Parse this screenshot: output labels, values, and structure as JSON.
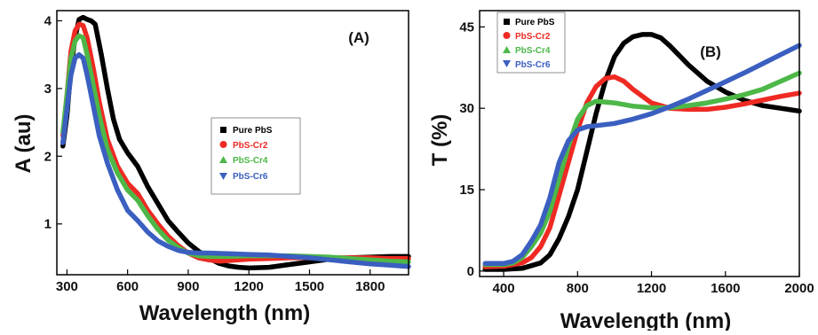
{
  "colors": {
    "pure": "#000000",
    "cr2": "#ee2a23",
    "cr4": "#4db848",
    "cr6": "#3b5fc0"
  },
  "chart_data": [
    {
      "type": "line",
      "panel_label": "(A)",
      "xlabel": "Wavelength (nm)",
      "ylabel": "A (au)",
      "xlim": [
        250,
        1990
      ],
      "ylim": [
        0.25,
        4.15
      ],
      "xticks": [
        300,
        600,
        900,
        1200,
        1500,
        1800
      ],
      "yticks": [
        1,
        2,
        3,
        4
      ],
      "legend_position": "right-center",
      "series": [
        {
          "name": "Pure PbS",
          "color": "#000000",
          "points": [
            [
              280,
              2.15
            ],
            [
              300,
              2.6
            ],
            [
              320,
              3.3
            ],
            [
              340,
              3.75
            ],
            [
              360,
              4.02
            ],
            [
              380,
              4.05
            ],
            [
              400,
              4.02
            ],
            [
              420,
              4.0
            ],
            [
              440,
              3.95
            ],
            [
              470,
              3.5
            ],
            [
              500,
              3.0
            ],
            [
              530,
              2.55
            ],
            [
              560,
              2.25
            ],
            [
              600,
              2.05
            ],
            [
              650,
              1.85
            ],
            [
              700,
              1.55
            ],
            [
              750,
              1.3
            ],
            [
              800,
              1.05
            ],
            [
              850,
              0.88
            ],
            [
              900,
              0.72
            ],
            [
              950,
              0.6
            ],
            [
              1000,
              0.5
            ],
            [
              1050,
              0.42
            ],
            [
              1100,
              0.38
            ],
            [
              1150,
              0.36
            ],
            [
              1200,
              0.35
            ],
            [
              1300,
              0.36
            ],
            [
              1400,
              0.4
            ],
            [
              1500,
              0.44
            ],
            [
              1600,
              0.48
            ],
            [
              1700,
              0.5
            ],
            [
              1800,
              0.51
            ],
            [
              1900,
              0.52
            ],
            [
              1990,
              0.52
            ]
          ]
        },
        {
          "name": "PbS-Cr2",
          "color": "#ee2a23",
          "points": [
            [
              280,
              2.3
            ],
            [
              300,
              2.9
            ],
            [
              320,
              3.55
            ],
            [
              340,
              3.85
            ],
            [
              360,
              3.95
            ],
            [
              380,
              3.93
            ],
            [
              400,
              3.75
            ],
            [
              430,
              3.3
            ],
            [
              460,
              2.8
            ],
            [
              500,
              2.25
            ],
            [
              550,
              1.85
            ],
            [
              600,
              1.6
            ],
            [
              650,
              1.45
            ],
            [
              700,
              1.2
            ],
            [
              750,
              1.0
            ],
            [
              800,
              0.82
            ],
            [
              850,
              0.68
            ],
            [
              900,
              0.57
            ],
            [
              950,
              0.5
            ],
            [
              1000,
              0.47
            ],
            [
              1050,
              0.45
            ],
            [
              1100,
              0.46
            ],
            [
              1200,
              0.48
            ],
            [
              1300,
              0.49
            ],
            [
              1400,
              0.5
            ],
            [
              1500,
              0.5
            ],
            [
              1600,
              0.5
            ],
            [
              1700,
              0.5
            ],
            [
              1800,
              0.5
            ],
            [
              1900,
              0.49
            ],
            [
              1990,
              0.49
            ]
          ]
        },
        {
          "name": "PbS-Cr4",
          "color": "#4db848",
          "points": [
            [
              280,
              2.35
            ],
            [
              300,
              2.9
            ],
            [
              320,
              3.45
            ],
            [
              340,
              3.7
            ],
            [
              360,
              3.78
            ],
            [
              380,
              3.75
            ],
            [
              400,
              3.5
            ],
            [
              430,
              3.05
            ],
            [
              460,
              2.6
            ],
            [
              500,
              2.1
            ],
            [
              550,
              1.75
            ],
            [
              600,
              1.5
            ],
            [
              650,
              1.35
            ],
            [
              700,
              1.12
            ],
            [
              750,
              0.92
            ],
            [
              800,
              0.76
            ],
            [
              850,
              0.65
            ],
            [
              900,
              0.57
            ],
            [
              950,
              0.53
            ],
            [
              1000,
              0.52
            ],
            [
              1100,
              0.52
            ],
            [
              1200,
              0.53
            ],
            [
              1300,
              0.53
            ],
            [
              1400,
              0.53
            ],
            [
              1500,
              0.52
            ],
            [
              1600,
              0.51
            ],
            [
              1700,
              0.49
            ],
            [
              1800,
              0.47
            ],
            [
              1900,
              0.45
            ],
            [
              1990,
              0.44
            ]
          ]
        },
        {
          "name": "PbS-Cr6",
          "color": "#3b5fc0",
          "points": [
            [
              280,
              2.2
            ],
            [
              300,
              2.7
            ],
            [
              320,
              3.2
            ],
            [
              340,
              3.45
            ],
            [
              360,
              3.5
            ],
            [
              380,
              3.45
            ],
            [
              400,
              3.2
            ],
            [
              430,
              2.75
            ],
            [
              460,
              2.3
            ],
            [
              500,
              1.9
            ],
            [
              550,
              1.5
            ],
            [
              600,
              1.2
            ],
            [
              650,
              1.05
            ],
            [
              700,
              0.88
            ],
            [
              750,
              0.75
            ],
            [
              800,
              0.67
            ],
            [
              850,
              0.61
            ],
            [
              900,
              0.58
            ],
            [
              950,
              0.57
            ],
            [
              1000,
              0.57
            ],
            [
              1100,
              0.56
            ],
            [
              1200,
              0.55
            ],
            [
              1300,
              0.54
            ],
            [
              1400,
              0.52
            ],
            [
              1500,
              0.5
            ],
            [
              1600,
              0.47
            ],
            [
              1700,
              0.44
            ],
            [
              1800,
              0.41
            ],
            [
              1900,
              0.39
            ],
            [
              1990,
              0.37
            ]
          ]
        }
      ]
    },
    {
      "type": "line",
      "panel_label": "(B)",
      "xlabel": "Wavelength (nm)",
      "ylabel": "T (%)",
      "xlim": [
        270,
        2000
      ],
      "ylim": [
        -1,
        48
      ],
      "xticks": [
        400,
        800,
        1200,
        1600,
        2000
      ],
      "yticks": [
        0,
        15,
        30,
        45
      ],
      "legend_position": "top-left",
      "series": [
        {
          "name": "Pure PbS",
          "color": "#000000",
          "points": [
            [
              300,
              0.3
            ],
            [
              400,
              0.3
            ],
            [
              500,
              0.5
            ],
            [
              600,
              1.5
            ],
            [
              650,
              3
            ],
            [
              700,
              6
            ],
            [
              750,
              10
            ],
            [
              800,
              15
            ],
            [
              850,
              22
            ],
            [
              900,
              29
            ],
            [
              950,
              35
            ],
            [
              1000,
              39.5
            ],
            [
              1050,
              42
            ],
            [
              1100,
              43.2
            ],
            [
              1150,
              43.6
            ],
            [
              1200,
              43.6
            ],
            [
              1250,
              43
            ],
            [
              1300,
              41.5
            ],
            [
              1400,
              38
            ],
            [
              1500,
              35
            ],
            [
              1600,
              33
            ],
            [
              1700,
              31.5
            ],
            [
              1800,
              30.5
            ],
            [
              1900,
              30
            ],
            [
              2000,
              29.5
            ]
          ]
        },
        {
          "name": "PbS-Cr2",
          "color": "#ee2a23",
          "points": [
            [
              300,
              0.8
            ],
            [
              400,
              0.9
            ],
            [
              500,
              1.5
            ],
            [
              550,
              2.5
            ],
            [
              600,
              4.5
            ],
            [
              650,
              8
            ],
            [
              700,
              14
            ],
            [
              750,
              20
            ],
            [
              800,
              26
            ],
            [
              850,
              31
            ],
            [
              900,
              34
            ],
            [
              950,
              35.5
            ],
            [
              1000,
              35.8
            ],
            [
              1050,
              35
            ],
            [
              1100,
              33.5
            ],
            [
              1200,
              31
            ],
            [
              1300,
              30
            ],
            [
              1400,
              29.8
            ],
            [
              1500,
              29.8
            ],
            [
              1600,
              30.2
            ],
            [
              1700,
              30.8
            ],
            [
              1800,
              31.5
            ],
            [
              1900,
              32.2
            ],
            [
              2000,
              32.8
            ]
          ]
        },
        {
          "name": "PbS-Cr4",
          "color": "#4db848",
          "points": [
            [
              300,
              1.2
            ],
            [
              400,
              1.2
            ],
            [
              450,
              1.5
            ],
            [
              500,
              2.5
            ],
            [
              550,
              4.5
            ],
            [
              600,
              7
            ],
            [
              650,
              11
            ],
            [
              700,
              17
            ],
            [
              750,
              23
            ],
            [
              800,
              28
            ],
            [
              850,
              30.5
            ],
            [
              900,
              31.3
            ],
            [
              1000,
              31
            ],
            [
              1100,
              30.4
            ],
            [
              1200,
              30.1
            ],
            [
              1300,
              30.1
            ],
            [
              1400,
              30.5
            ],
            [
              1500,
              31
            ],
            [
              1600,
              31.7
            ],
            [
              1700,
              32.5
            ],
            [
              1800,
              33.5
            ],
            [
              1900,
              35
            ],
            [
              2000,
              36.5
            ]
          ]
        },
        {
          "name": "PbS-Cr6",
          "color": "#3b5fc0",
          "points": [
            [
              300,
              1.4
            ],
            [
              400,
              1.4
            ],
            [
              450,
              1.8
            ],
            [
              500,
              3
            ],
            [
              550,
              5.5
            ],
            [
              600,
              8.5
            ],
            [
              650,
              13.5
            ],
            [
              700,
              20
            ],
            [
              750,
              24
            ],
            [
              800,
              26
            ],
            [
              850,
              26.6
            ],
            [
              900,
              26.8
            ],
            [
              1000,
              27.2
            ],
            [
              1100,
              28
            ],
            [
              1200,
              29
            ],
            [
              1300,
              30.3
            ],
            [
              1400,
              31.7
            ],
            [
              1500,
              33.3
            ],
            [
              1600,
              34.9
            ],
            [
              1700,
              36.5
            ],
            [
              1800,
              38.2
            ],
            [
              1900,
              39.9
            ],
            [
              2000,
              41.6
            ]
          ]
        }
      ]
    }
  ]
}
